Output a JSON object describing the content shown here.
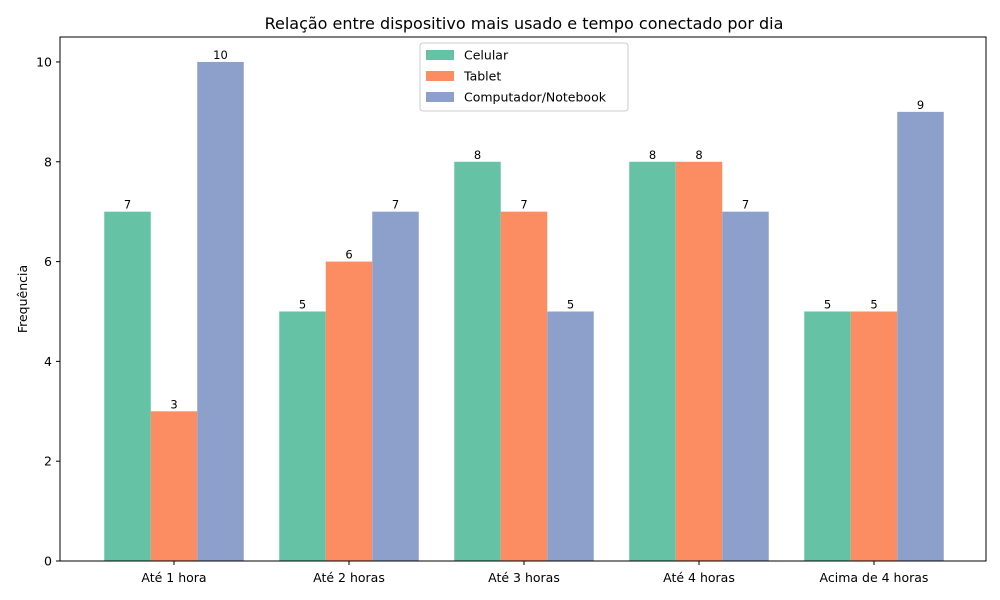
{
  "chart_data": {
    "type": "bar",
    "title": "Relação entre dispositivo mais usado e tempo conectado por dia",
    "xlabel": "",
    "ylabel": "Frequência",
    "categories": [
      "Até 1 hora",
      "Até 2 horas",
      "Até 3 horas",
      "Até 4 horas",
      "Acima de 4 horas"
    ],
    "series": [
      {
        "name": "Celular",
        "color": "#66c2a5",
        "values": [
          7,
          5,
          8,
          8,
          5
        ]
      },
      {
        "name": "Tablet",
        "color": "#fc8d62",
        "values": [
          3,
          6,
          7,
          8,
          5
        ]
      },
      {
        "name": "Computador/Notebook",
        "color": "#8da0cb",
        "values": [
          10,
          7,
          5,
          7,
          9
        ]
      }
    ],
    "ylim": [
      0,
      10.5
    ],
    "yticks": [
      0,
      2,
      4,
      6,
      8,
      10
    ],
    "grid": false,
    "legend_position": "top-center",
    "data_labels": true
  }
}
